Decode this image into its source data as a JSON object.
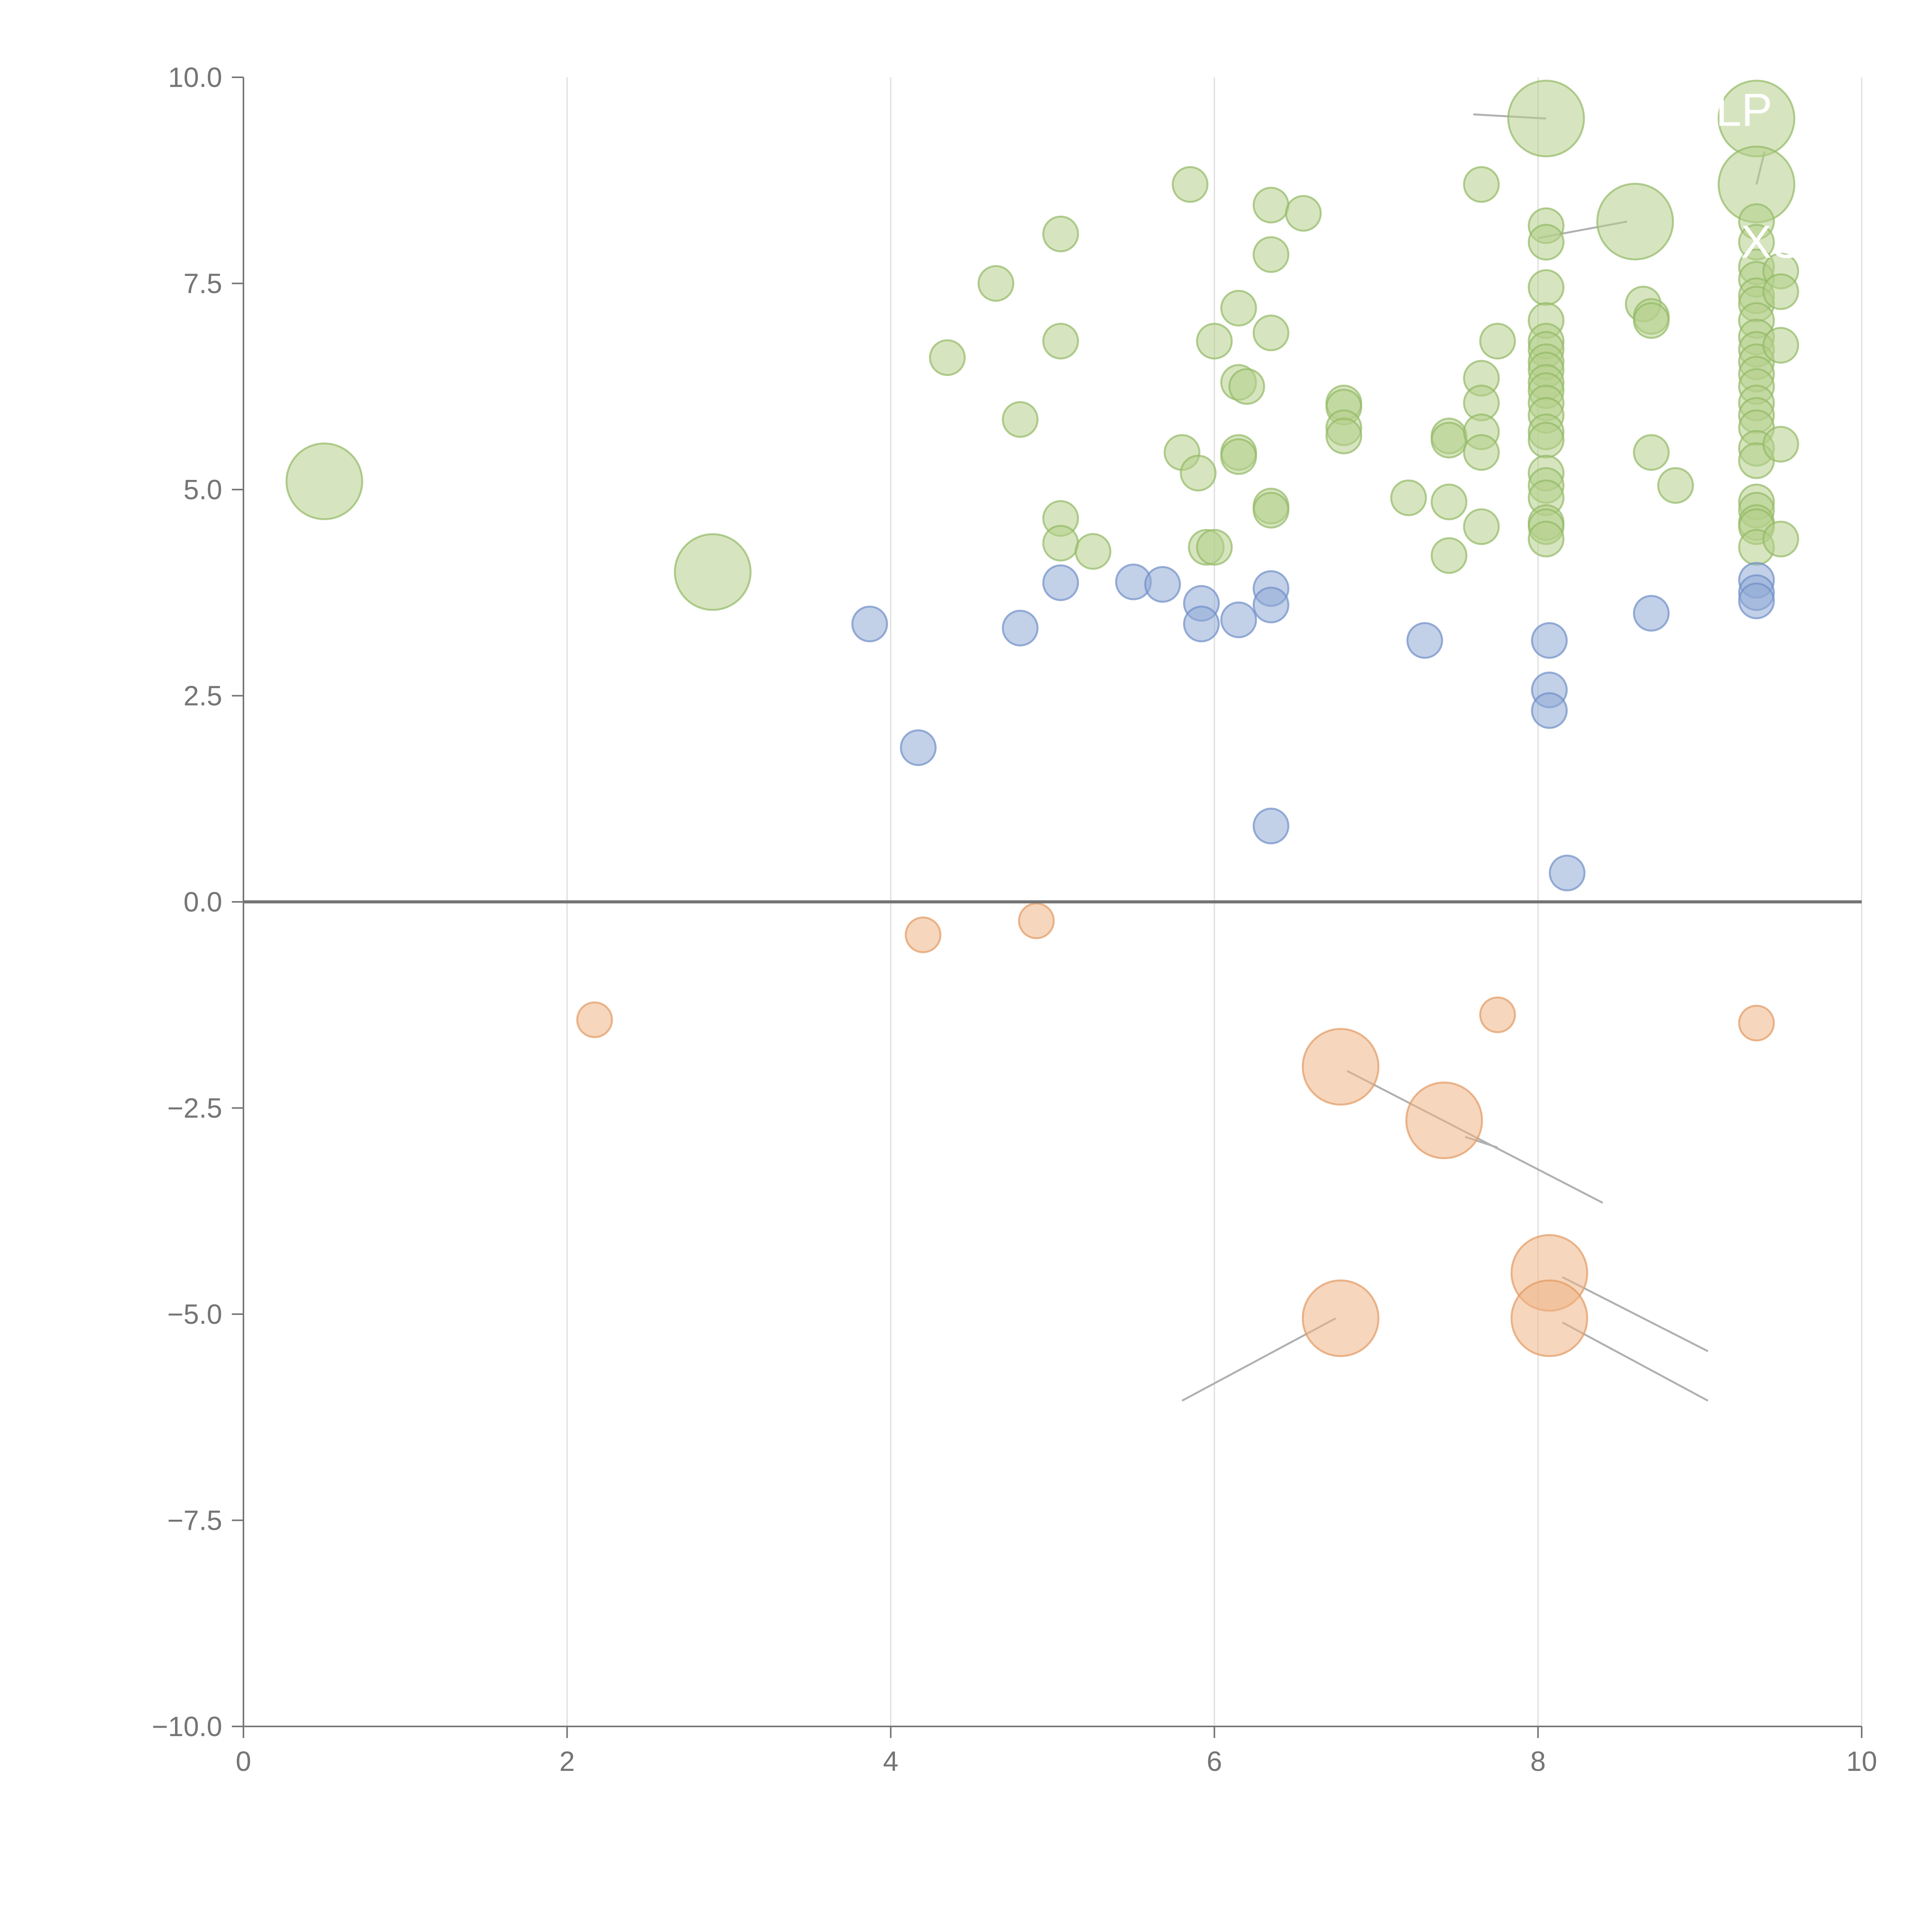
{
  "chart_data": {
    "type": "scatter",
    "title": "",
    "xlabel": "",
    "ylabel": "",
    "xlim": [
      0,
      10
    ],
    "ylim": [
      -10,
      10
    ],
    "x_ticks": [
      0,
      2,
      4,
      6,
      8,
      10
    ],
    "y_ticks": [
      -10,
      -7.5,
      -5,
      -2.5,
      0,
      2.5,
      5,
      7.5,
      10
    ],
    "x_tick_labels": [
      "0",
      "2",
      "4",
      "6",
      "8",
      "10"
    ],
    "y_tick_labels": [
      "−10.0",
      "−7.5",
      "−5.0",
      "−2.5",
      "0.0",
      "2.5",
      "5.0",
      "7.5",
      "10.0"
    ],
    "vertical_grid": true,
    "horizontal_grid": false,
    "zero_line": true,
    "colors": {
      "green_fill": "#b5cf8a",
      "green_stroke": "#93b965",
      "blue_fill": "#8fa9d6",
      "blue_stroke": "#6f8fc8",
      "orange_fill": "#eeb486",
      "orange_stroke": "#e39a62",
      "axis": "#757575",
      "grid": "#dcdcdc",
      "leader": "#b0b0b0"
    },
    "series": [
      {
        "color": "green",
        "points": [
          [
            0.5,
            5.1,
            2
          ],
          [
            2.9,
            4.0,
            2
          ],
          [
            4.35,
            6.6,
            1
          ],
          [
            4.65,
            7.5,
            1
          ],
          [
            4.8,
            5.85,
            1
          ],
          [
            5.05,
            8.1,
            1
          ],
          [
            5.05,
            6.8,
            1
          ],
          [
            5.05,
            4.65,
            1
          ],
          [
            5.05,
            4.35,
            1
          ],
          [
            5.25,
            4.25,
            1
          ],
          [
            5.8,
            5.45,
            1
          ],
          [
            5.85,
            8.7,
            1
          ],
          [
            5.9,
            5.2,
            1
          ],
          [
            5.95,
            4.3,
            1
          ],
          [
            6.0,
            6.8,
            1
          ],
          [
            6.0,
            4.3,
            1
          ],
          [
            6.15,
            7.2,
            1
          ],
          [
            6.15,
            6.3,
            1
          ],
          [
            6.2,
            6.25,
            1
          ],
          [
            6.15,
            5.45,
            1
          ],
          [
            6.15,
            5.4,
            1
          ],
          [
            6.35,
            8.45,
            1
          ],
          [
            6.35,
            7.85,
            1
          ],
          [
            6.35,
            6.9,
            1
          ],
          [
            6.35,
            4.8,
            1
          ],
          [
            6.35,
            4.75,
            1
          ],
          [
            6.55,
            8.35,
            1
          ],
          [
            6.8,
            6.05,
            1
          ],
          [
            6.8,
            6.0,
            1
          ],
          [
            6.8,
            5.75,
            1
          ],
          [
            6.8,
            5.65,
            1
          ],
          [
            7.2,
            4.9,
            1
          ],
          [
            7.45,
            5.65,
            1
          ],
          [
            7.45,
            5.6,
            1
          ],
          [
            7.45,
            4.85,
            1
          ],
          [
            7.45,
            4.2,
            1
          ],
          [
            7.65,
            8.7,
            1
          ],
          [
            7.65,
            6.35,
            1
          ],
          [
            7.65,
            6.05,
            1
          ],
          [
            7.65,
            5.7,
            1
          ],
          [
            7.65,
            5.45,
            1
          ],
          [
            7.65,
            4.55,
            1
          ],
          [
            7.75,
            6.8,
            1
          ],
          [
            8.05,
            9.5,
            2
          ],
          [
            8.05,
            8.2,
            1
          ],
          [
            8.05,
            8.0,
            1
          ],
          [
            8.05,
            7.45,
            1
          ],
          [
            8.05,
            7.05,
            1
          ],
          [
            8.05,
            6.8,
            1
          ],
          [
            8.05,
            6.7,
            1
          ],
          [
            8.05,
            6.55,
            1
          ],
          [
            8.05,
            6.45,
            1
          ],
          [
            8.05,
            6.3,
            1
          ],
          [
            8.05,
            6.2,
            1
          ],
          [
            8.05,
            6.05,
            1
          ],
          [
            8.05,
            5.9,
            1
          ],
          [
            8.05,
            5.7,
            1
          ],
          [
            8.05,
            5.6,
            1
          ],
          [
            8.05,
            5.2,
            1
          ],
          [
            8.05,
            5.05,
            1
          ],
          [
            8.05,
            4.9,
            1
          ],
          [
            8.05,
            4.6,
            1
          ],
          [
            8.05,
            4.55,
            1
          ],
          [
            8.05,
            4.4,
            1
          ],
          [
            8.6,
            8.25,
            2
          ],
          [
            8.65,
            7.25,
            1
          ],
          [
            8.7,
            7.1,
            1
          ],
          [
            8.7,
            7.05,
            1
          ],
          [
            8.7,
            5.45,
            1
          ],
          [
            8.85,
            5.05,
            1
          ],
          [
            9.35,
            9.5,
            2
          ],
          [
            9.35,
            8.7,
            2
          ],
          [
            9.35,
            8.25,
            1
          ],
          [
            9.35,
            8.0,
            1
          ],
          [
            9.35,
            7.7,
            1
          ],
          [
            9.35,
            7.55,
            1
          ],
          [
            9.35,
            7.35,
            1
          ],
          [
            9.35,
            7.25,
            1
          ],
          [
            9.35,
            7.05,
            1
          ],
          [
            9.35,
            6.85,
            1
          ],
          [
            9.35,
            6.7,
            1
          ],
          [
            9.35,
            6.55,
            1
          ],
          [
            9.35,
            6.4,
            1
          ],
          [
            9.35,
            6.25,
            1
          ],
          [
            9.35,
            6.05,
            1
          ],
          [
            9.35,
            5.9,
            1
          ],
          [
            9.35,
            5.75,
            1
          ],
          [
            9.35,
            5.5,
            1
          ],
          [
            9.35,
            5.35,
            1
          ],
          [
            9.35,
            4.85,
            1
          ],
          [
            9.35,
            4.75,
            1
          ],
          [
            9.35,
            4.6,
            1
          ],
          [
            9.35,
            4.55,
            1
          ],
          [
            9.35,
            4.3,
            1
          ],
          [
            9.5,
            7.65,
            1
          ],
          [
            9.5,
            7.4,
            1
          ],
          [
            9.5,
            6.75,
            1
          ],
          [
            9.5,
            5.55,
            1
          ],
          [
            9.5,
            4.4,
            1
          ]
        ]
      },
      {
        "color": "blue",
        "points": [
          [
            3.87,
            3.37,
            1
          ],
          [
            4.17,
            1.87,
            1
          ],
          [
            4.8,
            3.32,
            1
          ],
          [
            5.05,
            3.87,
            1
          ],
          [
            5.5,
            3.88,
            1
          ],
          [
            5.68,
            3.85,
            1
          ],
          [
            5.92,
            3.62,
            1
          ],
          [
            5.92,
            3.37,
            1
          ],
          [
            6.15,
            3.42,
            1
          ],
          [
            6.35,
            3.8,
            1
          ],
          [
            6.35,
            3.6,
            1
          ],
          [
            6.35,
            0.92,
            1
          ],
          [
            7.3,
            3.17,
            1
          ],
          [
            8.07,
            3.17,
            1
          ],
          [
            8.07,
            2.57,
            1
          ],
          [
            8.07,
            2.32,
            1
          ],
          [
            8.18,
            0.35,
            1
          ],
          [
            8.7,
            3.5,
            1
          ],
          [
            9.35,
            3.9,
            1
          ],
          [
            9.35,
            3.75,
            1
          ],
          [
            9.35,
            3.65,
            1
          ]
        ]
      },
      {
        "color": "orange",
        "points": [
          [
            2.17,
            -1.43,
            1
          ],
          [
            4.2,
            -0.4,
            1
          ],
          [
            4.9,
            -0.23,
            1
          ],
          [
            6.78,
            -2.0,
            2
          ],
          [
            6.78,
            -5.05,
            2
          ],
          [
            7.42,
            -2.65,
            2
          ],
          [
            7.75,
            -1.37,
            1
          ],
          [
            8.07,
            -4.5,
            2
          ],
          [
            8.07,
            -5.05,
            2
          ],
          [
            9.35,
            -1.47,
            1
          ]
        ]
      }
    ],
    "labels": [
      "LP",
      "EXS"
    ]
  }
}
